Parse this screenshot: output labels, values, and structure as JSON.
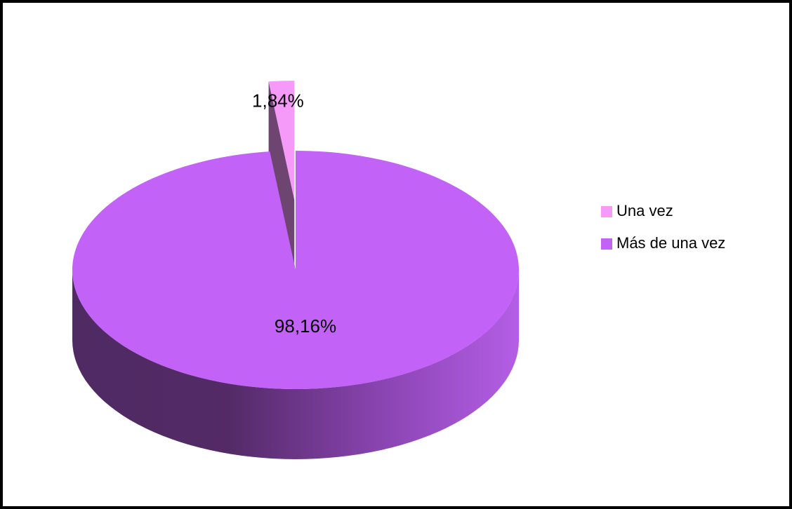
{
  "chart_data": {
    "type": "pie",
    "categories": [
      "Una vez",
      "Más de una vez"
    ],
    "values": [
      1.84,
      98.16
    ],
    "value_labels": [
      "1,84%",
      "98,16%"
    ],
    "colors": [
      "#f59af8",
      "#c262f6"
    ],
    "legend": "right",
    "three_d": true
  }
}
